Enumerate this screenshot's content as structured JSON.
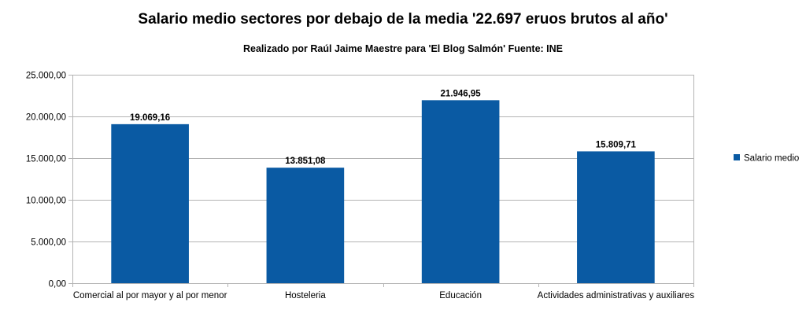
{
  "chart_data": {
    "type": "bar",
    "title": "Salario medio sectores por debajo de la media '22.697 eruos brutos al año'",
    "subtitle": "Realizado por Raúl Jaime Maestre para 'El Blog Salmón'      Fuente: INE",
    "categories": [
      "Comercial al por mayor y al por menor",
      "Hosteleria",
      "Educación",
      "Actividades administrativas y auxiliares"
    ],
    "series": [
      {
        "name": "Salario medio",
        "values": [
          19069.16,
          13851.08,
          21946.95,
          15809.71
        ],
        "value_labels": [
          "19.069,16",
          "13.851,08",
          "21.946,95",
          "15.809,71"
        ],
        "color": "#0a5aa3"
      }
    ],
    "ylim": [
      0,
      25000
    ],
    "y_ticks": [
      0,
      5000,
      10000,
      15000,
      20000,
      25000
    ],
    "y_tick_labels": [
      "0,00",
      "5.000,00",
      "10.000,00",
      "15.000,00",
      "20.000,00",
      "25.000,00"
    ],
    "grid": true,
    "legend_position": "right",
    "xlabel": "",
    "ylabel": ""
  },
  "colors": {
    "bar": "#0a5aa3",
    "grid": "#b3b3b3",
    "axis": "#b3b3b3"
  }
}
